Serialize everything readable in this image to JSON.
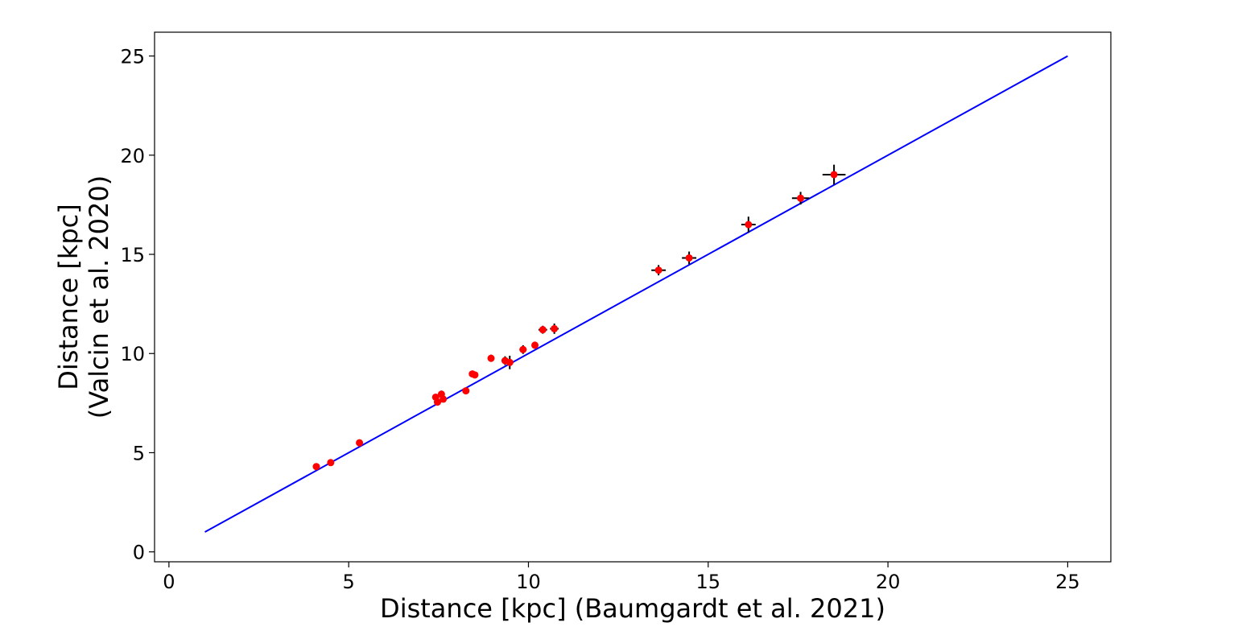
{
  "chart_data": {
    "type": "scatter",
    "xlabel": "Distance [kpc] (Baumgardt et al. 2021)",
    "ylabel_lines": [
      "Distance [kpc]",
      "(Valcin et al. 2020)"
    ],
    "xlim": [
      -0.4,
      26.2
    ],
    "ylim": [
      -0.5,
      26.2
    ],
    "xticks": [
      0,
      5,
      10,
      15,
      20,
      25
    ],
    "yticks": [
      0,
      5,
      10,
      15,
      20,
      25
    ],
    "grid": false,
    "legend": "none",
    "colors": {
      "points": "#ff0000",
      "errorbars": "#000000",
      "line": "#0000ff",
      "axes": "#000000"
    },
    "series": [
      {
        "kind": "errorbar-scatter",
        "points": [
          {
            "x": 4.1,
            "y": 4.3,
            "xerr": 0.04,
            "yerr": 0.08
          },
          {
            "x": 4.5,
            "y": 4.5,
            "xerr": 0.04,
            "yerr": 0.08
          },
          {
            "x": 5.3,
            "y": 5.5,
            "xerr": 0.04,
            "yerr": 0.08
          },
          {
            "x": 7.42,
            "y": 7.8,
            "xerr": 0.05,
            "yerr": 0.1
          },
          {
            "x": 7.47,
            "y": 7.55,
            "xerr": 0.05,
            "yerr": 0.1
          },
          {
            "x": 7.58,
            "y": 7.95,
            "xerr": 0.05,
            "yerr": 0.18
          },
          {
            "x": 7.63,
            "y": 7.7,
            "xerr": 0.05,
            "yerr": 0.1
          },
          {
            "x": 8.26,
            "y": 8.12,
            "xerr": 0.05,
            "yerr": 0.1
          },
          {
            "x": 8.44,
            "y": 8.97,
            "xerr": 0.06,
            "yerr": 0.1
          },
          {
            "x": 8.51,
            "y": 8.92,
            "xerr": 0.06,
            "yerr": 0.1
          },
          {
            "x": 8.96,
            "y": 9.76,
            "xerr": 0.08,
            "yerr": 0.18
          },
          {
            "x": 9.35,
            "y": 9.64,
            "xerr": 0.1,
            "yerr": 0.22
          },
          {
            "x": 9.48,
            "y": 9.55,
            "xerr": 0.1,
            "yerr": 0.34
          },
          {
            "x": 9.85,
            "y": 10.2,
            "xerr": 0.1,
            "yerr": 0.22
          },
          {
            "x": 10.18,
            "y": 10.42,
            "xerr": 0.09,
            "yerr": 0.18
          },
          {
            "x": 10.4,
            "y": 11.2,
            "xerr": 0.12,
            "yerr": 0.2
          },
          {
            "x": 10.72,
            "y": 11.25,
            "xerr": 0.12,
            "yerr": 0.26
          },
          {
            "x": 13.62,
            "y": 14.2,
            "xerr": 0.2,
            "yerr": 0.26
          },
          {
            "x": 14.47,
            "y": 14.82,
            "xerr": 0.2,
            "yerr": 0.32
          },
          {
            "x": 16.12,
            "y": 16.5,
            "xerr": 0.2,
            "yerr": 0.4
          },
          {
            "x": 17.57,
            "y": 17.83,
            "xerr": 0.24,
            "yerr": 0.32
          },
          {
            "x": 18.5,
            "y": 19.02,
            "xerr": 0.32,
            "yerr": 0.5
          }
        ]
      },
      {
        "kind": "line",
        "x": [
          1,
          25
        ],
        "y": [
          1,
          25
        ]
      }
    ]
  }
}
